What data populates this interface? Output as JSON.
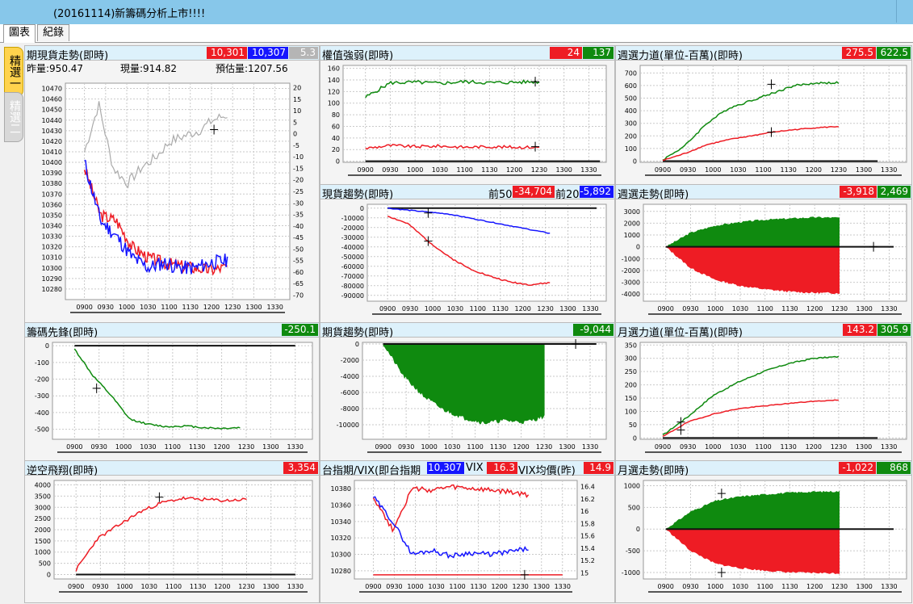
{
  "window": {
    "title": "(20161114)新籌碼分析上市!!!!"
  },
  "tabs": [
    "圖表",
    "紀錄"
  ],
  "side_tabs": [
    "精選一",
    "精選二"
  ],
  "panels": {
    "futures_spot": {
      "title": "期現貨走勢(即時)",
      "badges": [
        "10,301",
        "10,307",
        "5.3"
      ],
      "prev_volume_label": "昨量:950.47",
      "cur_volume_label": "現量:914.82",
      "est_volume_label": "預估量:1207.56",
      "y_ticks_left": [
        "10470",
        "10460",
        "10450",
        "10440",
        "10430",
        "10420",
        "10410",
        "10400",
        "10390",
        "10380",
        "10370",
        "10360",
        "10350",
        "10340",
        "10330",
        "10320",
        "10310",
        "10300",
        "10290",
        "10280"
      ],
      "y_ticks_right": [
        "20",
        "15",
        "10",
        "5",
        "0",
        "-5",
        "-10",
        "-15",
        "-20",
        "-25",
        "-30",
        "-35",
        "-40",
        "-45",
        "-50",
        "-55",
        "-60",
        "-65",
        "-70"
      ]
    },
    "weighted_strength": {
      "title": "權值強弱(即時)",
      "badges": [
        "24",
        "137"
      ],
      "y_ticks": [
        "160",
        "140",
        "120",
        "100",
        "80",
        "60",
        "40",
        "20",
        "0"
      ]
    },
    "weekly_option_power": {
      "title": "週選力道(單位-百萬)(即時)",
      "badges": [
        "275.5",
        "622.5"
      ],
      "y_ticks": [
        "700",
        "600",
        "500",
        "400",
        "300",
        "200",
        "100",
        "0"
      ]
    },
    "spot_trend": {
      "title": "現貨趨勢(即時)",
      "label_front50": "前50",
      "badge_front50": "-34,704",
      "label_front20": "前20",
      "badge_front20": "-5,892",
      "y_ticks": [
        "0",
        "-10000",
        "-20000",
        "-30000",
        "-40000",
        "-50000",
        "-60000",
        "-70000",
        "-80000",
        "-90000"
      ]
    },
    "weekly_option_trend": {
      "title": "週選走勢(即時)",
      "badges": [
        "-3,918",
        "2,469"
      ],
      "y_ticks": [
        "3000",
        "2000",
        "1000",
        "0",
        "-1000",
        "-2000",
        "-3000",
        "-4000"
      ]
    },
    "chip_vanguard": {
      "title": "籌碼先鋒(即時)",
      "badges": [
        "-250.1"
      ],
      "y_ticks": [
        "0",
        "-100",
        "-200",
        "-300",
        "-400",
        "-500"
      ]
    },
    "futures_trend": {
      "title": "期貨趨勢(即時)",
      "badges": [
        "-9,044"
      ],
      "y_ticks": [
        "0",
        "-2000",
        "-4000",
        "-6000",
        "-8000",
        "-10000"
      ]
    },
    "monthly_option_power": {
      "title": "月選力道(單位-百萬)(即時)",
      "badges": [
        "143.2",
        "305.9"
      ],
      "y_ticks": [
        "350",
        "300",
        "250",
        "200",
        "150",
        "100",
        "50",
        "0"
      ]
    },
    "counter_trend": {
      "title": "逆空飛翔(即時)",
      "badges": [
        "3,354"
      ],
      "y_ticks": [
        "4000",
        "3500",
        "3000",
        "2500",
        "2000",
        "1500",
        "1000",
        "500",
        "0"
      ]
    },
    "index_vix": {
      "title": "台指期/VIX(即台指期",
      "badge_index": "10,307",
      "label_vix": "VIX",
      "badge_vix": "16.3",
      "label_vix_avg": "VIX均價(昨)",
      "badge_vix_avg": "14.9",
      "y_ticks_left": [
        "10380",
        "10360",
        "10340",
        "10320",
        "10300",
        "10280"
      ],
      "y_ticks_right": [
        "16.4",
        "16.2",
        "16",
        "15.8",
        "15.6",
        "15.4",
        "15.2",
        "15"
      ]
    },
    "monthly_option_trend": {
      "title": "月選走勢(即時)",
      "badges": [
        "-1,022",
        "868"
      ],
      "y_ticks": [
        "1000",
        "500",
        "0",
        "-500",
        "-1000"
      ]
    }
  },
  "x_ticks": [
    "0900",
    "0930",
    "1000",
    "1030",
    "1100",
    "1130",
    "1200",
    "1230",
    "1300",
    "1330"
  ],
  "colors": {
    "up": "#0f8a0f",
    "down": "#ee1c24",
    "index": "#1515ff",
    "ref": "#aaaaaa",
    "header": "#ddf1fb",
    "titlebar": "#87c7ea"
  }
}
